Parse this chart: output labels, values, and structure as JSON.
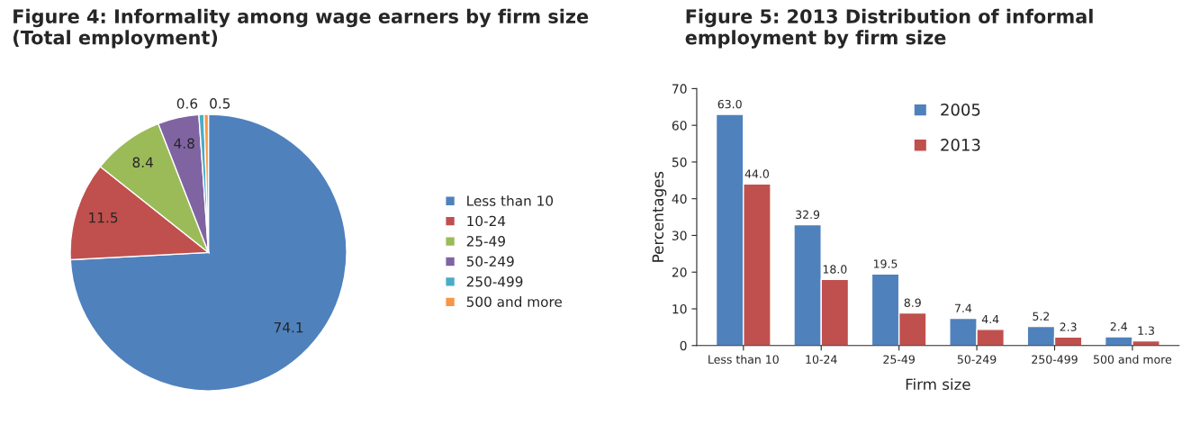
{
  "chart_data": [
    {
      "type": "pie",
      "title": "Figure 4: Informality among wage earners by firm size\n(Total employment)",
      "categories": [
        "Less than 10",
        "10-24",
        "25-49",
        "50-249",
        "250-499",
        "500 and more"
      ],
      "values": [
        74.1,
        11.5,
        8.4,
        4.8,
        0.6,
        0.5
      ],
      "colors": [
        "#4f81bd",
        "#c0504d",
        "#9bbb59",
        "#8064a2",
        "#4bacc6",
        "#f79646"
      ],
      "data_labels": true,
      "legend": "right"
    },
    {
      "type": "bar",
      "title": "Figure 5: 2013 Distribution of informal\nemployment by firm size",
      "xlabel": "Firm size",
      "ylabel": "Percentages",
      "categories": [
        "Less than 10",
        "10-24",
        "25-49",
        "50-249",
        "250-499",
        "500 and more"
      ],
      "ylim": [
        0,
        70
      ],
      "yticks": [
        0,
        10,
        20,
        30,
        40,
        50,
        60,
        70
      ],
      "grid": false,
      "legend": "top right",
      "series": [
        {
          "name": "2005",
          "color": "#4f81bd",
          "values": [
            63.0,
            32.9,
            19.5,
            7.4,
            5.2,
            2.4
          ],
          "value_labels": [
            "63.0",
            "32.9",
            "19.5",
            "7.4",
            "5.2",
            "2.4"
          ]
        },
        {
          "name": "2013",
          "color": "#c0504d",
          "values": [
            44.0,
            18.0,
            8.9,
            4.4,
            2.3,
            1.3
          ],
          "value_labels": [
            "44.0",
            "18.0",
            "8.9",
            "4.4",
            "2.3",
            "1.3"
          ]
        }
      ]
    }
  ]
}
